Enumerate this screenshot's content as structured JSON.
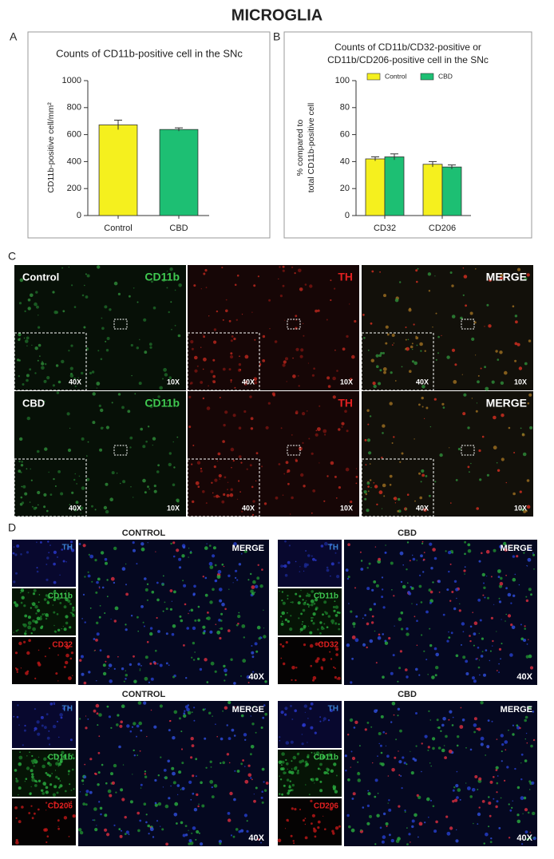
{
  "figure": {
    "title": "MICROGLIA",
    "panel_letters": [
      "A",
      "B",
      "C",
      "D"
    ]
  },
  "chart_data": [
    {
      "type": "bar",
      "title": "Counts of CD11b-positive cell in the SNc",
      "ylabel": "CD11b-positive cell/mm²",
      "categories": [
        "Control",
        "CBD"
      ],
      "values": [
        672,
        638
      ],
      "errors": [
        35,
        12
      ],
      "colors": [
        "#f5f01e",
        "#1dbf73"
      ],
      "ylim": [
        0,
        1000
      ],
      "yticks": [
        0,
        200,
        400,
        600,
        800,
        1000
      ]
    },
    {
      "type": "grouped_bar",
      "title": [
        "Counts of CD11b/CD32-positive or",
        "CD11b/CD206-positive cell in the SNc"
      ],
      "ylabel": [
        "% compared to",
        "total CD11b-positive cell"
      ],
      "categories": [
        "CD32",
        "CD206"
      ],
      "series": [
        {
          "name": "Control",
          "color": "#f5f01e",
          "values": [
            42,
            38
          ],
          "errors": [
            1.5,
            2
          ]
        },
        {
          "name": "CBD",
          "color": "#1dbf73",
          "values": [
            43.5,
            36
          ],
          "errors": [
            2.2,
            1.5
          ]
        }
      ],
      "ylim": [
        0,
        100
      ],
      "yticks": [
        0,
        20,
        40,
        60,
        80,
        100
      ],
      "legend": "top"
    }
  ],
  "panel_c": {
    "rows": [
      "Control",
      "CBD"
    ],
    "columns": [
      "CD11b",
      "TH",
      "MERGE"
    ],
    "inset_magnification": "40X",
    "magnification": "10X"
  },
  "panel_d": {
    "groups": [
      {
        "header": "CONTROL",
        "channels": [
          "TH",
          "CD11b",
          "CD32"
        ],
        "merge": "MERGE",
        "magnification": "40X"
      },
      {
        "header": "CBD",
        "channels": [
          "TH",
          "CD11b",
          "CD32"
        ],
        "merge": "MERGE",
        "magnification": "40X"
      },
      {
        "header": "CONTROL",
        "channels": [
          "TH",
          "CD11b",
          "CD206"
        ],
        "merge": "MERGE",
        "magnification": "40X"
      },
      {
        "header": "CBD",
        "channels": [
          "TH",
          "CD11b",
          "CD206"
        ],
        "merge": "MERGE",
        "magnification": "40X"
      }
    ]
  }
}
